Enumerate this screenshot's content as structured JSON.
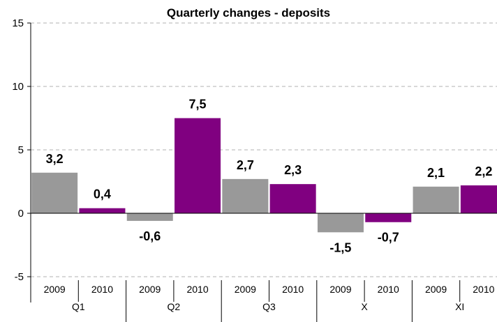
{
  "chart_data": {
    "type": "bar",
    "title": "Quarterly changes - deposits",
    "xlabel": "",
    "ylabel": "",
    "ylim": [
      -7,
      15
    ],
    "yticks": [
      "-5",
      "0",
      "5",
      "10",
      "15"
    ],
    "ytick_values": [
      -5,
      0,
      5,
      10,
      15
    ],
    "groups": [
      "Q1",
      "Q2",
      "Q3",
      "X",
      "XI"
    ],
    "series": [
      {
        "name": "2009",
        "color": "#999999",
        "values": [
          3.2,
          -0.6,
          2.7,
          -1.5,
          2.1
        ],
        "labels": [
          "3,2",
          "-0,6",
          "2,7",
          "-1,5",
          "2,1"
        ]
      },
      {
        "name": "2010",
        "color": "#800080",
        "values": [
          0.4,
          7.5,
          2.3,
          -0.7,
          2.2
        ],
        "labels": [
          "0,4",
          "7,5",
          "2,3",
          "-0,7",
          "2,2"
        ]
      }
    ],
    "grid": true,
    "legend": "none"
  }
}
